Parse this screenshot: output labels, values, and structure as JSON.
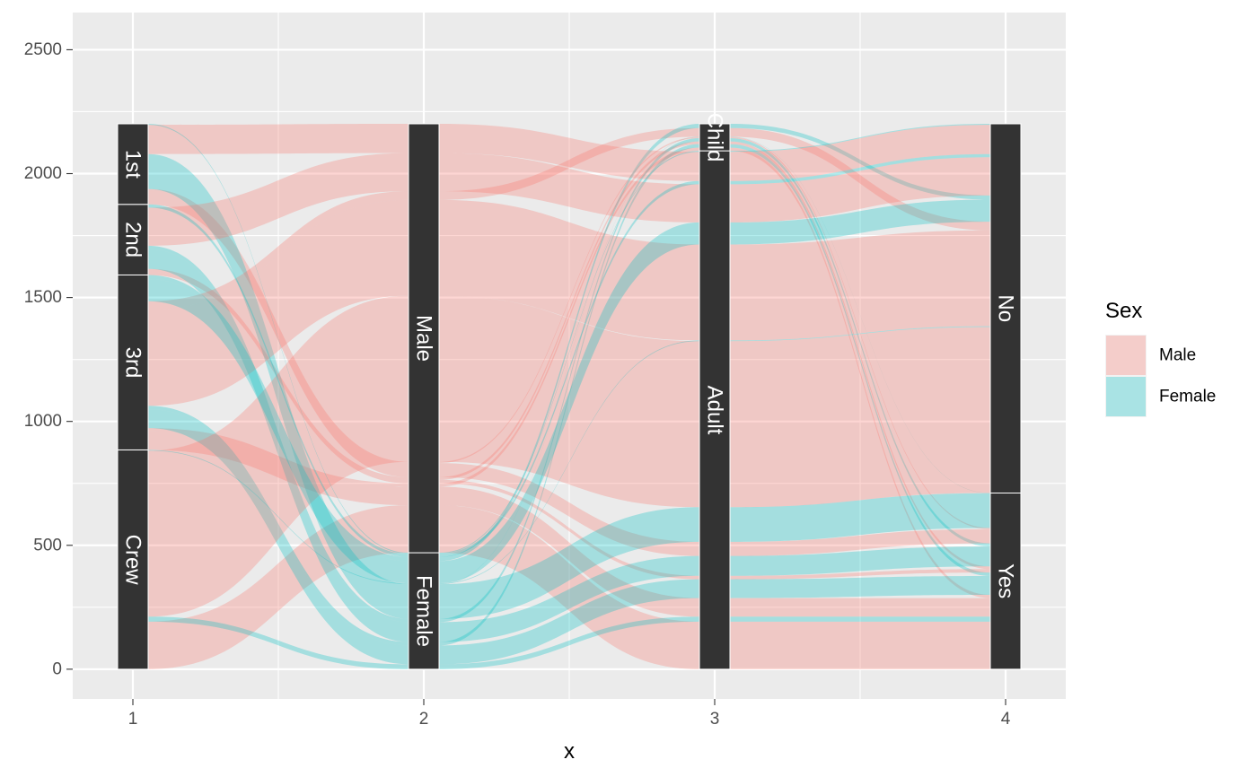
{
  "chart_data": {
    "type": "alluvial",
    "xlabel": "x",
    "ylabel": "",
    "x_ticks": [
      "1",
      "2",
      "3",
      "4"
    ],
    "y_ticks": [
      0,
      500,
      1000,
      1500,
      2000,
      2500
    ],
    "ylim": [
      -120,
      2650
    ],
    "grid": true,
    "legend": {
      "title": "Sex",
      "position": "right",
      "items": [
        {
          "label": "Male",
          "color": "#F8766D"
        },
        {
          "label": "Female",
          "color": "#00BFC4"
        }
      ]
    },
    "axes": [
      {
        "x": 1,
        "strata": [
          "Crew",
          "3rd",
          "2nd",
          "1st"
        ]
      },
      {
        "x": 2,
        "strata": [
          "Female",
          "Male"
        ]
      },
      {
        "x": 3,
        "strata": [
          "Adult",
          "Child"
        ]
      },
      {
        "x": 4,
        "strata": [
          "Yes",
          "No"
        ]
      }
    ],
    "flows": [
      {
        "path": [
          "Crew",
          "Male",
          "Adult",
          "Yes"
        ],
        "sex": "Male",
        "value": 192
      },
      {
        "path": [
          "Crew",
          "Female",
          "Adult",
          "Yes"
        ],
        "sex": "Female",
        "value": 20
      },
      {
        "path": [
          "3rd",
          "Male",
          "Adult",
          "Yes"
        ],
        "sex": "Male",
        "value": 75
      },
      {
        "path": [
          "3rd",
          "Male",
          "Child",
          "Yes"
        ],
        "sex": "Male",
        "value": 13
      },
      {
        "path": [
          "3rd",
          "Female",
          "Adult",
          "Yes"
        ],
        "sex": "Female",
        "value": 76
      },
      {
        "path": [
          "3rd",
          "Female",
          "Child",
          "Yes"
        ],
        "sex": "Female",
        "value": 14
      },
      {
        "path": [
          "2nd",
          "Male",
          "Adult",
          "Yes"
        ],
        "sex": "Male",
        "value": 14
      },
      {
        "path": [
          "2nd",
          "Male",
          "Child",
          "Yes"
        ],
        "sex": "Male",
        "value": 11
      },
      {
        "path": [
          "2nd",
          "Female",
          "Adult",
          "Yes"
        ],
        "sex": "Female",
        "value": 80
      },
      {
        "path": [
          "2nd",
          "Female",
          "Child",
          "Yes"
        ],
        "sex": "Female",
        "value": 13
      },
      {
        "path": [
          "1st",
          "Male",
          "Adult",
          "Yes"
        ],
        "sex": "Male",
        "value": 57
      },
      {
        "path": [
          "1st",
          "Male",
          "Child",
          "Yes"
        ],
        "sex": "Male",
        "value": 5
      },
      {
        "path": [
          "1st",
          "Female",
          "Adult",
          "Yes"
        ],
        "sex": "Female",
        "value": 140
      },
      {
        "path": [
          "1st",
          "Female",
          "Child",
          "Yes"
        ],
        "sex": "Female",
        "value": 1
      },
      {
        "path": [
          "Crew",
          "Male",
          "Adult",
          "No"
        ],
        "sex": "Male",
        "value": 670
      },
      {
        "path": [
          "Crew",
          "Female",
          "Adult",
          "No"
        ],
        "sex": "Female",
        "value": 3
      },
      {
        "path": [
          "3rd",
          "Male",
          "Adult",
          "No"
        ],
        "sex": "Male",
        "value": 387
      },
      {
        "path": [
          "3rd",
          "Male",
          "Child",
          "No"
        ],
        "sex": "Male",
        "value": 35
      },
      {
        "path": [
          "3rd",
          "Female",
          "Adult",
          "No"
        ],
        "sex": "Female",
        "value": 89
      },
      {
        "path": [
          "3rd",
          "Female",
          "Child",
          "No"
        ],
        "sex": "Female",
        "value": 17
      },
      {
        "path": [
          "2nd",
          "Male",
          "Adult",
          "No"
        ],
        "sex": "Male",
        "value": 154
      },
      {
        "path": [
          "2nd",
          "Female",
          "Adult",
          "No"
        ],
        "sex": "Female",
        "value": 13
      },
      {
        "path": [
          "1st",
          "Male",
          "Adult",
          "No"
        ],
        "sex": "Male",
        "value": 118
      },
      {
        "path": [
          "1st",
          "Female",
          "Adult",
          "No"
        ],
        "sex": "Female",
        "value": 4
      }
    ]
  }
}
